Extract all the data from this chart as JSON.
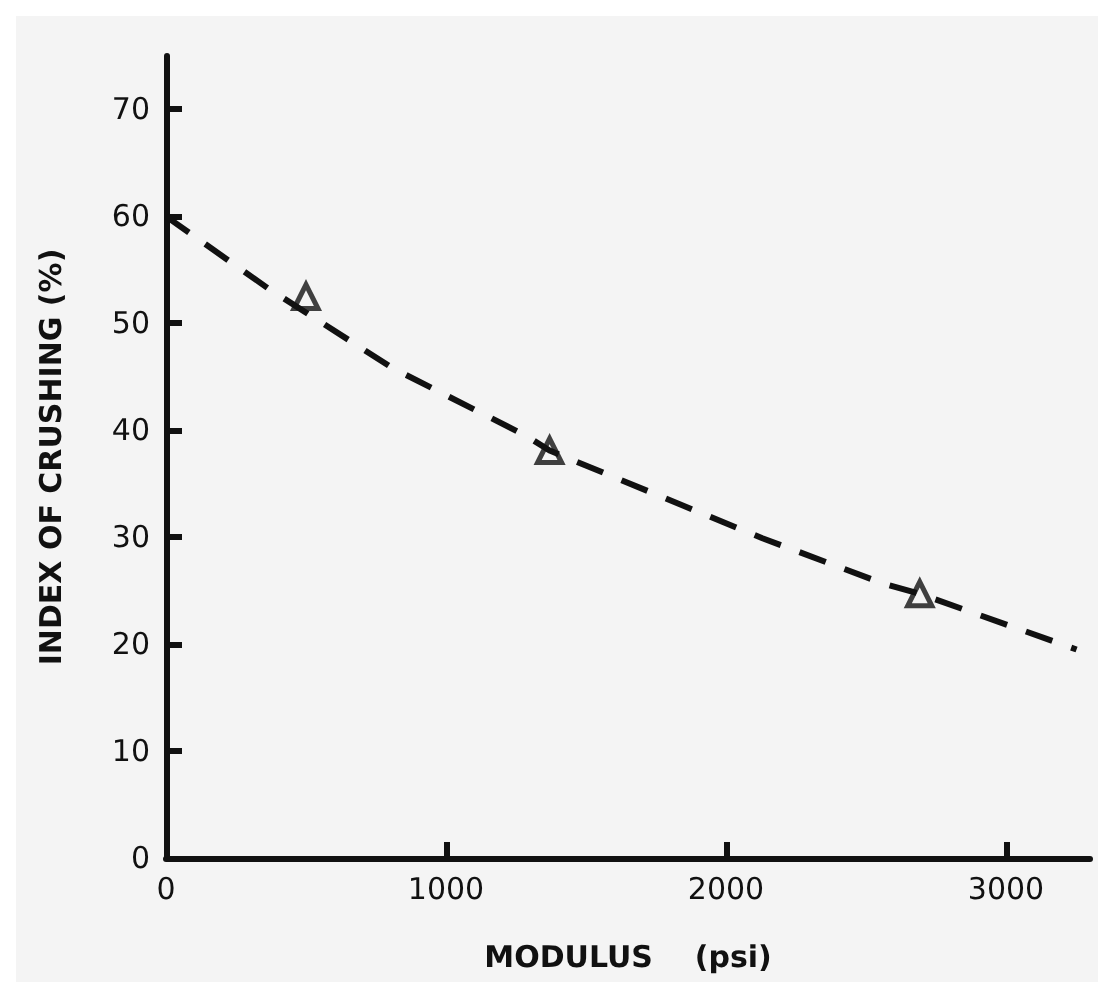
{
  "chart_data": {
    "type": "line",
    "xlabel": "MODULUS    (psi)",
    "ylabel": "INDEX OF CRUSHING (%)",
    "xlim": [
      0,
      3300
    ],
    "xticks": [
      0,
      1000,
      2000,
      3000
    ],
    "ylim": [
      0,
      75
    ],
    "yticks": [
      0,
      10,
      20,
      30,
      40,
      50,
      60,
      70
    ],
    "grid": false,
    "series": [
      {
        "color": "#111111",
        "line_style": "dashed",
        "marker": "none",
        "x": [
          0,
          363,
          810,
          1285,
          1370,
          2130,
          2558,
          2692,
          3252
        ],
        "values": [
          60,
          53.3,
          45.8,
          39.5,
          38.1,
          29.9,
          25.7,
          24.7,
          19.5
        ]
      },
      {
        "type": "scatter",
        "color": "#111111",
        "marker": "triangle",
        "x": [
          500,
          1370,
          2692
        ],
        "values": [
          52.5,
          38.1,
          24.7
        ]
      }
    ]
  }
}
